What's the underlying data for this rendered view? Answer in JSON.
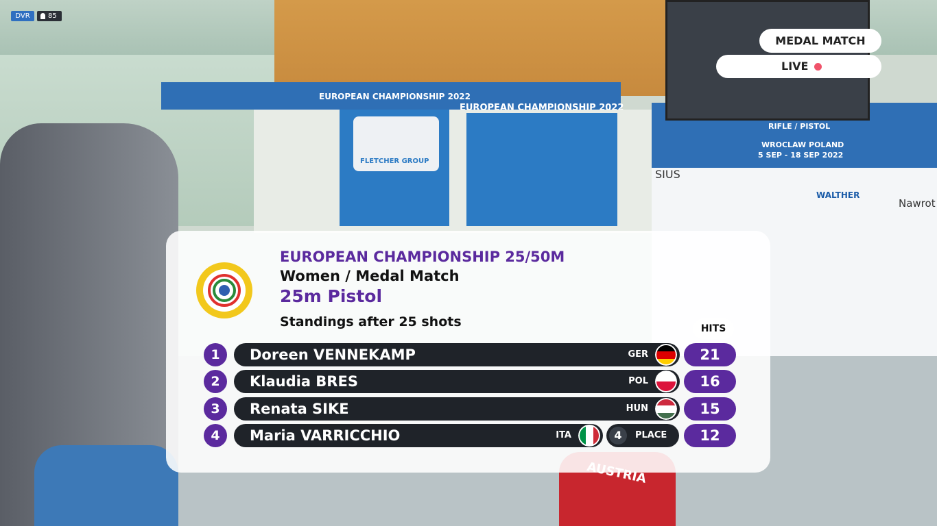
{
  "player": {
    "quality": "DVR",
    "viewers": "85"
  },
  "broadcast": {
    "phase": "MEDAL MATCH",
    "status": "LIVE"
  },
  "scene": {
    "banner_left": "EUROPEAN CHAMPIONSHIP 2022",
    "banner_right": "EUROPEAN CHAMPIONSHIP 2022",
    "sponsor": "FLETCHER GROUP",
    "event_wall": "RIFLE / PISTOL",
    "venue": "WROCLAW POLAND",
    "dates": "5 SEP - 18 SEP 2022",
    "sponsor_2": "SIUS",
    "sponsor_3": "WALTHER",
    "sponsor_4": "Nawrot",
    "jacket": "AUSTRIA"
  },
  "standings": {
    "title": "EUROPEAN CHAMPIONSHIP 25/50M",
    "subtitle": "Women / Medal Match",
    "event": "25m Pistol",
    "heading": "Standings after 25 shots",
    "hits_header": "HITS",
    "rows": [
      {
        "rank": "1",
        "name": "Doreen VENNEKAMP",
        "country": "GER",
        "hits": "21"
      },
      {
        "rank": "2",
        "name": "Klaudia BRES",
        "country": "POL",
        "hits": "16"
      },
      {
        "rank": "3",
        "name": "Renata SIKE",
        "country": "HUN",
        "hits": "15"
      },
      {
        "rank": "4",
        "name": "Maria VARRICCHIO",
        "country": "ITA",
        "hits": "12",
        "place_number": "4",
        "place_label": "PLACE"
      }
    ]
  }
}
